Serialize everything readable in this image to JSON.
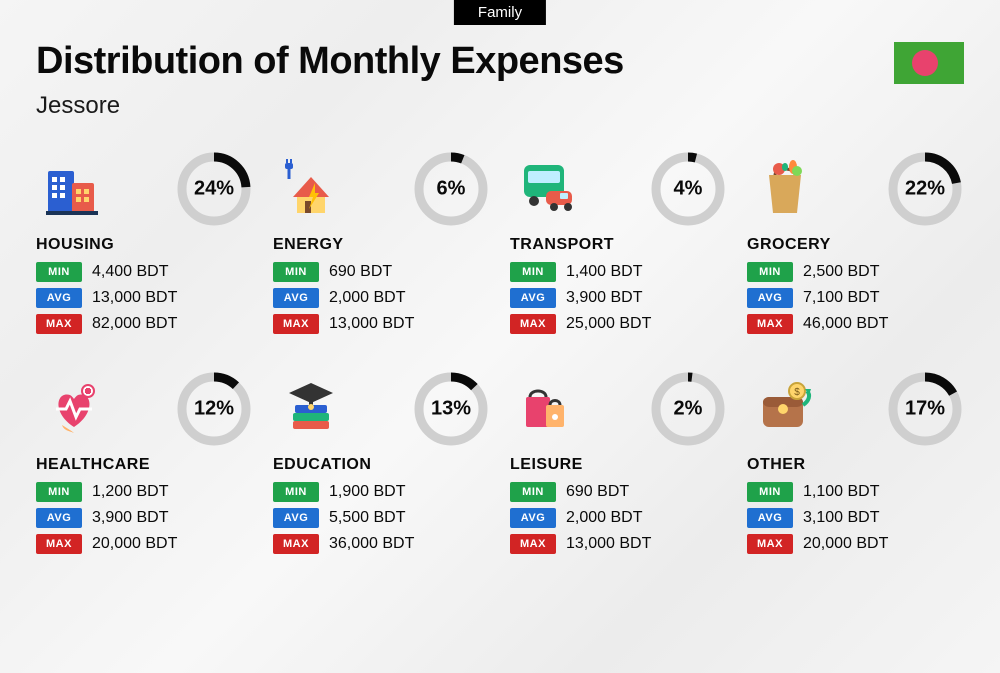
{
  "tag": "Family",
  "title": "Distribution of Monthly Expenses",
  "subtitle": "Jessore",
  "flag": {
    "bg": "#3fa535",
    "circle": "#e8426d"
  },
  "currency": "BDT",
  "donut": {
    "track_color": "#cfcfcf",
    "fill_color": "#0a0a0a",
    "stroke_width": 9,
    "radius": 32
  },
  "badges": {
    "min": {
      "label": "MIN",
      "color": "#1fa24a"
    },
    "avg": {
      "label": "AVG",
      "color": "#1f6fd1"
    },
    "max": {
      "label": "MAX",
      "color": "#d22424"
    }
  },
  "categories": [
    {
      "key": "housing",
      "name": "HOUSING",
      "pct": 24,
      "min": "4,400",
      "avg": "13,000",
      "max": "82,000",
      "icon": "housing"
    },
    {
      "key": "energy",
      "name": "ENERGY",
      "pct": 6,
      "min": "690",
      "avg": "2,000",
      "max": "13,000",
      "icon": "energy"
    },
    {
      "key": "transport",
      "name": "TRANSPORT",
      "pct": 4,
      "min": "1,400",
      "avg": "3,900",
      "max": "25,000",
      "icon": "transport"
    },
    {
      "key": "grocery",
      "name": "GROCERY",
      "pct": 22,
      "min": "2,500",
      "avg": "7,100",
      "max": "46,000",
      "icon": "grocery"
    },
    {
      "key": "healthcare",
      "name": "HEALTHCARE",
      "pct": 12,
      "min": "1,200",
      "avg": "3,900",
      "max": "20,000",
      "icon": "healthcare"
    },
    {
      "key": "education",
      "name": "EDUCATION",
      "pct": 13,
      "min": "1,900",
      "avg": "5,500",
      "max": "36,000",
      "icon": "education"
    },
    {
      "key": "leisure",
      "name": "LEISURE",
      "pct": 2,
      "min": "690",
      "avg": "2,000",
      "max": "13,000",
      "icon": "leisure"
    },
    {
      "key": "other",
      "name": "OTHER",
      "pct": 17,
      "min": "1,100",
      "avg": "3,100",
      "max": "20,000",
      "icon": "other"
    }
  ]
}
